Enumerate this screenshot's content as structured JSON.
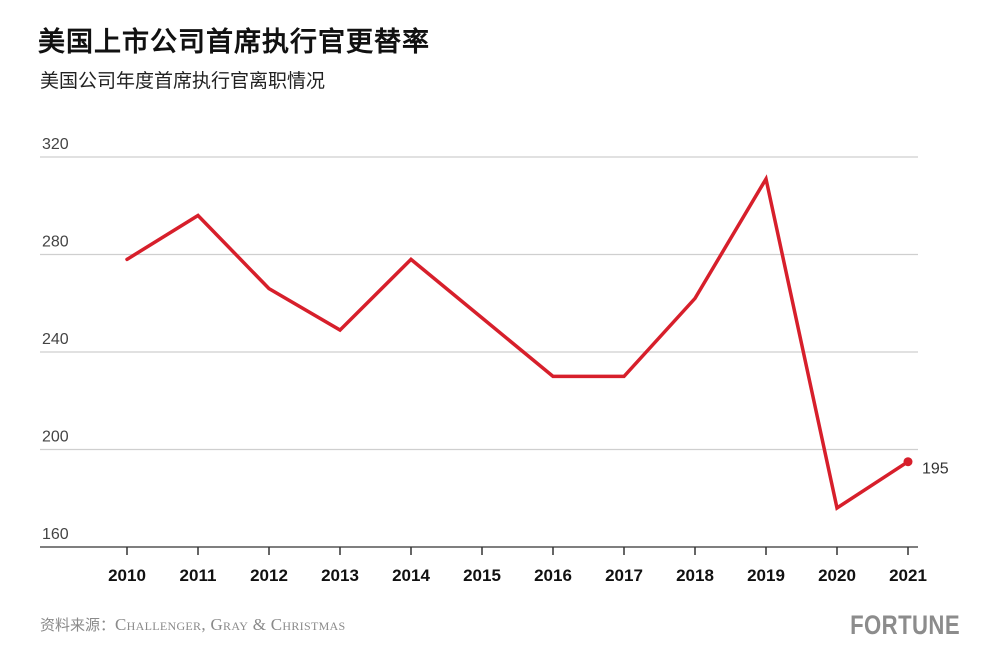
{
  "title": "美国上市公司首席执行官更替率",
  "subtitle": "美国公司年度首席执行官离职情况",
  "source": {
    "label": "资料来源：",
    "text": "Challenger, Gray & Christmas"
  },
  "logo": "FORTUNE",
  "colors": {
    "line": "#d71f2b",
    "grid": "#cfcfcf",
    "axis": "#333333"
  },
  "chart_data": {
    "type": "line",
    "title": "美国上市公司首席执行官更替率",
    "subtitle": "美国公司年度首席执行官离职情况",
    "xlabel": "",
    "ylabel": "",
    "x": [
      "2010",
      "2011",
      "2012",
      "2013",
      "2014",
      "2015",
      "2016",
      "2017",
      "2018",
      "2019",
      "2020",
      "2021"
    ],
    "values": [
      278,
      296,
      266,
      249,
      278,
      254,
      230,
      230,
      262,
      311,
      176,
      195
    ],
    "ylim": [
      160,
      320
    ],
    "yticks": [
      "320",
      "280",
      "240",
      "200",
      "160"
    ],
    "grid": true,
    "annotations": [
      {
        "x": "2021",
        "text": "195"
      }
    ]
  }
}
